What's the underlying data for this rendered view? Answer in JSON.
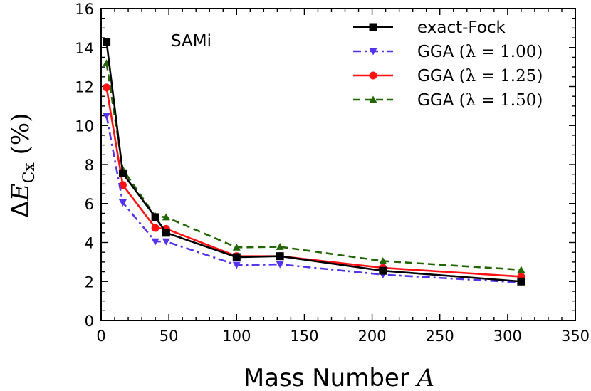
{
  "chart_data": {
    "type": "line",
    "xlabel": "Mass Number A",
    "xlabel_main": "Mass Number",
    "xlabel_var": "A",
    "ylabel": "ΔE_Cx (%)",
    "ylabel_delta": "Δ",
    "ylabel_var": "E",
    "ylabel_sub": "Cx",
    "ylabel_unit": "(%)",
    "annotation": "SAMi",
    "xlim": [
      0,
      350
    ],
    "ylim": [
      0,
      16
    ],
    "xticks": [
      0,
      50,
      100,
      150,
      200,
      250,
      300,
      350
    ],
    "yticks": [
      0,
      2,
      4,
      6,
      8,
      10,
      12,
      14,
      16
    ],
    "grid": false,
    "legend_position": "top-right",
    "x": [
      4,
      16,
      40,
      48,
      100,
      132,
      208,
      310
    ],
    "series": [
      {
        "name": "exact-Fock",
        "name_text": "exact-Fock",
        "name_math": "",
        "color": "#000000",
        "marker": "square",
        "linestyle": "solid",
        "values": [
          14.3,
          7.55,
          5.3,
          4.5,
          3.25,
          3.3,
          2.55,
          2.0
        ]
      },
      {
        "name": "GGA (λ = 1.00)",
        "name_text": "GGA ",
        "name_math": "(λ = 1.00)",
        "color": "#5533ee",
        "marker": "triangle-down",
        "linestyle": "dashdot",
        "values": [
          10.5,
          6.05,
          4.05,
          4.05,
          2.85,
          2.88,
          2.35,
          1.95
        ]
      },
      {
        "name": "GGA (λ = 1.25)",
        "name_text": "GGA ",
        "name_math": "(λ = 1.25)",
        "color": "#ff1111",
        "marker": "circle",
        "linestyle": "solid",
        "values": [
          11.95,
          6.95,
          4.75,
          4.7,
          3.3,
          3.3,
          2.7,
          2.25
        ]
      },
      {
        "name": "GGA (λ = 1.50)",
        "name_text": "GGA ",
        "name_math": "(λ = 1.50)",
        "color": "#226600",
        "marker": "triangle-up",
        "linestyle": "dashed",
        "values": [
          13.2,
          7.75,
          5.35,
          5.3,
          3.75,
          3.78,
          3.05,
          2.6
        ]
      }
    ]
  }
}
